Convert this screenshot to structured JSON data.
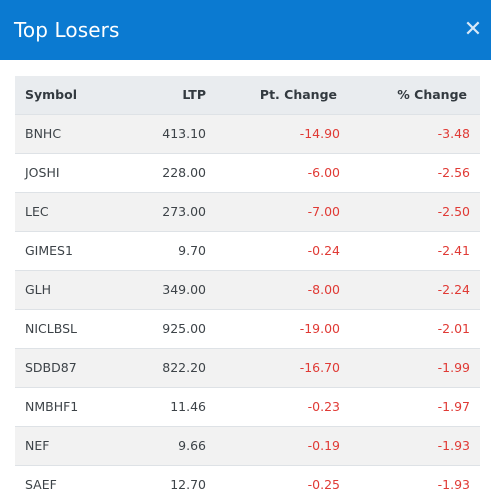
{
  "header": {
    "title": "Top Losers",
    "close_glyph": "✕",
    "close_icon": "close-icon"
  },
  "colors": {
    "header_bg": "#0b7ad1",
    "negative": "#e03a35"
  },
  "table": {
    "columns": [
      "Symbol",
      "LTP",
      "Pt. Change",
      "% Change"
    ],
    "rows": [
      {
        "symbol": "BNHC",
        "ltp": "413.10",
        "pt_change": "-14.90",
        "pct_change": "-3.48"
      },
      {
        "symbol": "JOSHI",
        "ltp": "228.00",
        "pt_change": "-6.00",
        "pct_change": "-2.56"
      },
      {
        "symbol": "LEC",
        "ltp": "273.00",
        "pt_change": "-7.00",
        "pct_change": "-2.50"
      },
      {
        "symbol": "GIMES1",
        "ltp": "9.70",
        "pt_change": "-0.24",
        "pct_change": "-2.41"
      },
      {
        "symbol": "GLH",
        "ltp": "349.00",
        "pt_change": "-8.00",
        "pct_change": "-2.24"
      },
      {
        "symbol": "NICLBSL",
        "ltp": "925.00",
        "pt_change": "-19.00",
        "pct_change": "-2.01"
      },
      {
        "symbol": "SDBD87",
        "ltp": "822.20",
        "pt_change": "-16.70",
        "pct_change": "-1.99"
      },
      {
        "symbol": "NMBHF1",
        "ltp": "11.46",
        "pt_change": "-0.23",
        "pct_change": "-1.97"
      },
      {
        "symbol": "NEF",
        "ltp": "9.66",
        "pt_change": "-0.19",
        "pct_change": "-1.93"
      },
      {
        "symbol": "SAEF",
        "ltp": "12.70",
        "pt_change": "-0.25",
        "pct_change": "-1.93"
      }
    ]
  }
}
